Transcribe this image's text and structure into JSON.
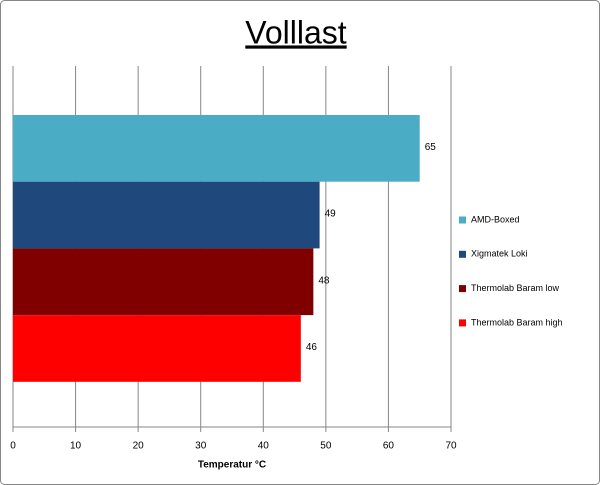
{
  "chart_data": {
    "type": "bar",
    "orientation": "horizontal",
    "title": "Volllast",
    "x_label": "Temperatur °C",
    "series": [
      {
        "name": "AMD-Boxed",
        "color": "#4bacc6",
        "values": [
          65
        ]
      },
      {
        "name": "Xigmatek Loki",
        "color": "#1f497d",
        "values": [
          49
        ]
      },
      {
        "name": "Thermolab Baram low",
        "color": "#800000",
        "values": [
          48
        ]
      },
      {
        "name": "Thermolab Baram high",
        "color": "#ff0000",
        "values": [
          46
        ]
      }
    ],
    "xlim": [
      0,
      70
    ],
    "xticks": [
      0,
      10,
      20,
      30,
      40,
      50,
      60,
      70
    ],
    "grid": true,
    "legend": "right"
  }
}
